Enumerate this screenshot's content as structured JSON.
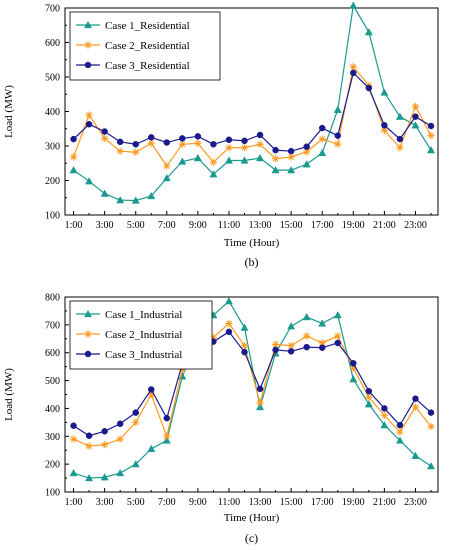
{
  "colors": {
    "case1": "#1a9a8e",
    "case2": "#ff9a1e",
    "case3": "#1a1a8c"
  },
  "chart_data": [
    {
      "panel": "(b)",
      "type": "line",
      "xlabel": "Time (Hour)",
      "ylabel": "Load (MW)",
      "ylim": [
        100,
        700
      ],
      "yticks": [
        100,
        200,
        300,
        400,
        500,
        600,
        700
      ],
      "x": [
        1,
        2,
        3,
        4,
        5,
        6,
        7,
        8,
        9,
        10,
        11,
        12,
        13,
        14,
        15,
        16,
        17,
        18,
        19,
        20,
        21,
        22,
        23,
        24
      ],
      "xtick_labels": [
        "1:00",
        "3:00",
        "5:00",
        "7:00",
        "9:00",
        "11:00",
        "13:00",
        "15:00",
        "17:00",
        "19:00",
        "21:00",
        "23:00"
      ],
      "grid": false,
      "legend": "top-left",
      "series": [
        {
          "name": "Case 1_Residential",
          "marker": "triangle",
          "color_key": "case1",
          "values": [
            230,
            198,
            162,
            143,
            142,
            155,
            207,
            255,
            265,
            218,
            258,
            258,
            265,
            230,
            230,
            247,
            280,
            405,
            707,
            630,
            455,
            385,
            360,
            288
          ]
        },
        {
          "name": "Case 2_Residential",
          "marker": "star",
          "color_key": "case2",
          "values": [
            268,
            390,
            322,
            285,
            282,
            308,
            242,
            305,
            308,
            253,
            295,
            295,
            305,
            263,
            268,
            283,
            320,
            305,
            530,
            475,
            345,
            295,
            415,
            330
          ]
        },
        {
          "name": "Case 3_Residential",
          "marker": "circle",
          "color_key": "case3",
          "values": [
            320,
            363,
            342,
            312,
            305,
            325,
            310,
            322,
            328,
            305,
            318,
            315,
            332,
            288,
            285,
            298,
            352,
            330,
            512,
            468,
            360,
            320,
            385,
            358
          ]
        }
      ]
    },
    {
      "panel": "(c)",
      "type": "line",
      "xlabel": "Time (Hour)",
      "ylabel": "Load (MW)",
      "ylim": [
        100,
        800
      ],
      "yticks": [
        100,
        200,
        300,
        400,
        500,
        600,
        700,
        800
      ],
      "x": [
        1,
        2,
        3,
        4,
        5,
        6,
        7,
        8,
        9,
        10,
        11,
        12,
        13,
        14,
        15,
        16,
        17,
        18,
        19,
        20,
        21,
        22,
        23,
        24
      ],
      "xtick_labels": [
        "1:00",
        "3:00",
        "5:00",
        "7:00",
        "9:00",
        "11:00",
        "13:00",
        "15:00",
        "17:00",
        "19:00",
        "21:00",
        "23:00"
      ],
      "grid": false,
      "legend": "top-left",
      "series": [
        {
          "name": "Case 1_Industrial",
          "marker": "triangle",
          "color_key": "case1",
          "values": [
            168,
            150,
            153,
            168,
            200,
            255,
            285,
            515,
            640,
            735,
            785,
            690,
            405,
            598,
            695,
            728,
            705,
            735,
            505,
            415,
            340,
            285,
            230,
            193
          ]
        },
        {
          "name": "Case 2_Industrial",
          "marker": "star",
          "color_key": "case2",
          "values": [
            290,
            265,
            270,
            290,
            350,
            450,
            300,
            540,
            575,
            655,
            705,
            625,
            420,
            630,
            625,
            660,
            635,
            660,
            545,
            440,
            375,
            315,
            405,
            335
          ]
        },
        {
          "name": "Case 3_Industrial",
          "marker": "circle",
          "color_key": "case3",
          "values": [
            338,
            302,
            318,
            345,
            385,
            468,
            365,
            560,
            590,
            640,
            675,
            602,
            470,
            610,
            605,
            620,
            618,
            635,
            562,
            462,
            400,
            340,
            435,
            385
          ]
        }
      ]
    }
  ]
}
